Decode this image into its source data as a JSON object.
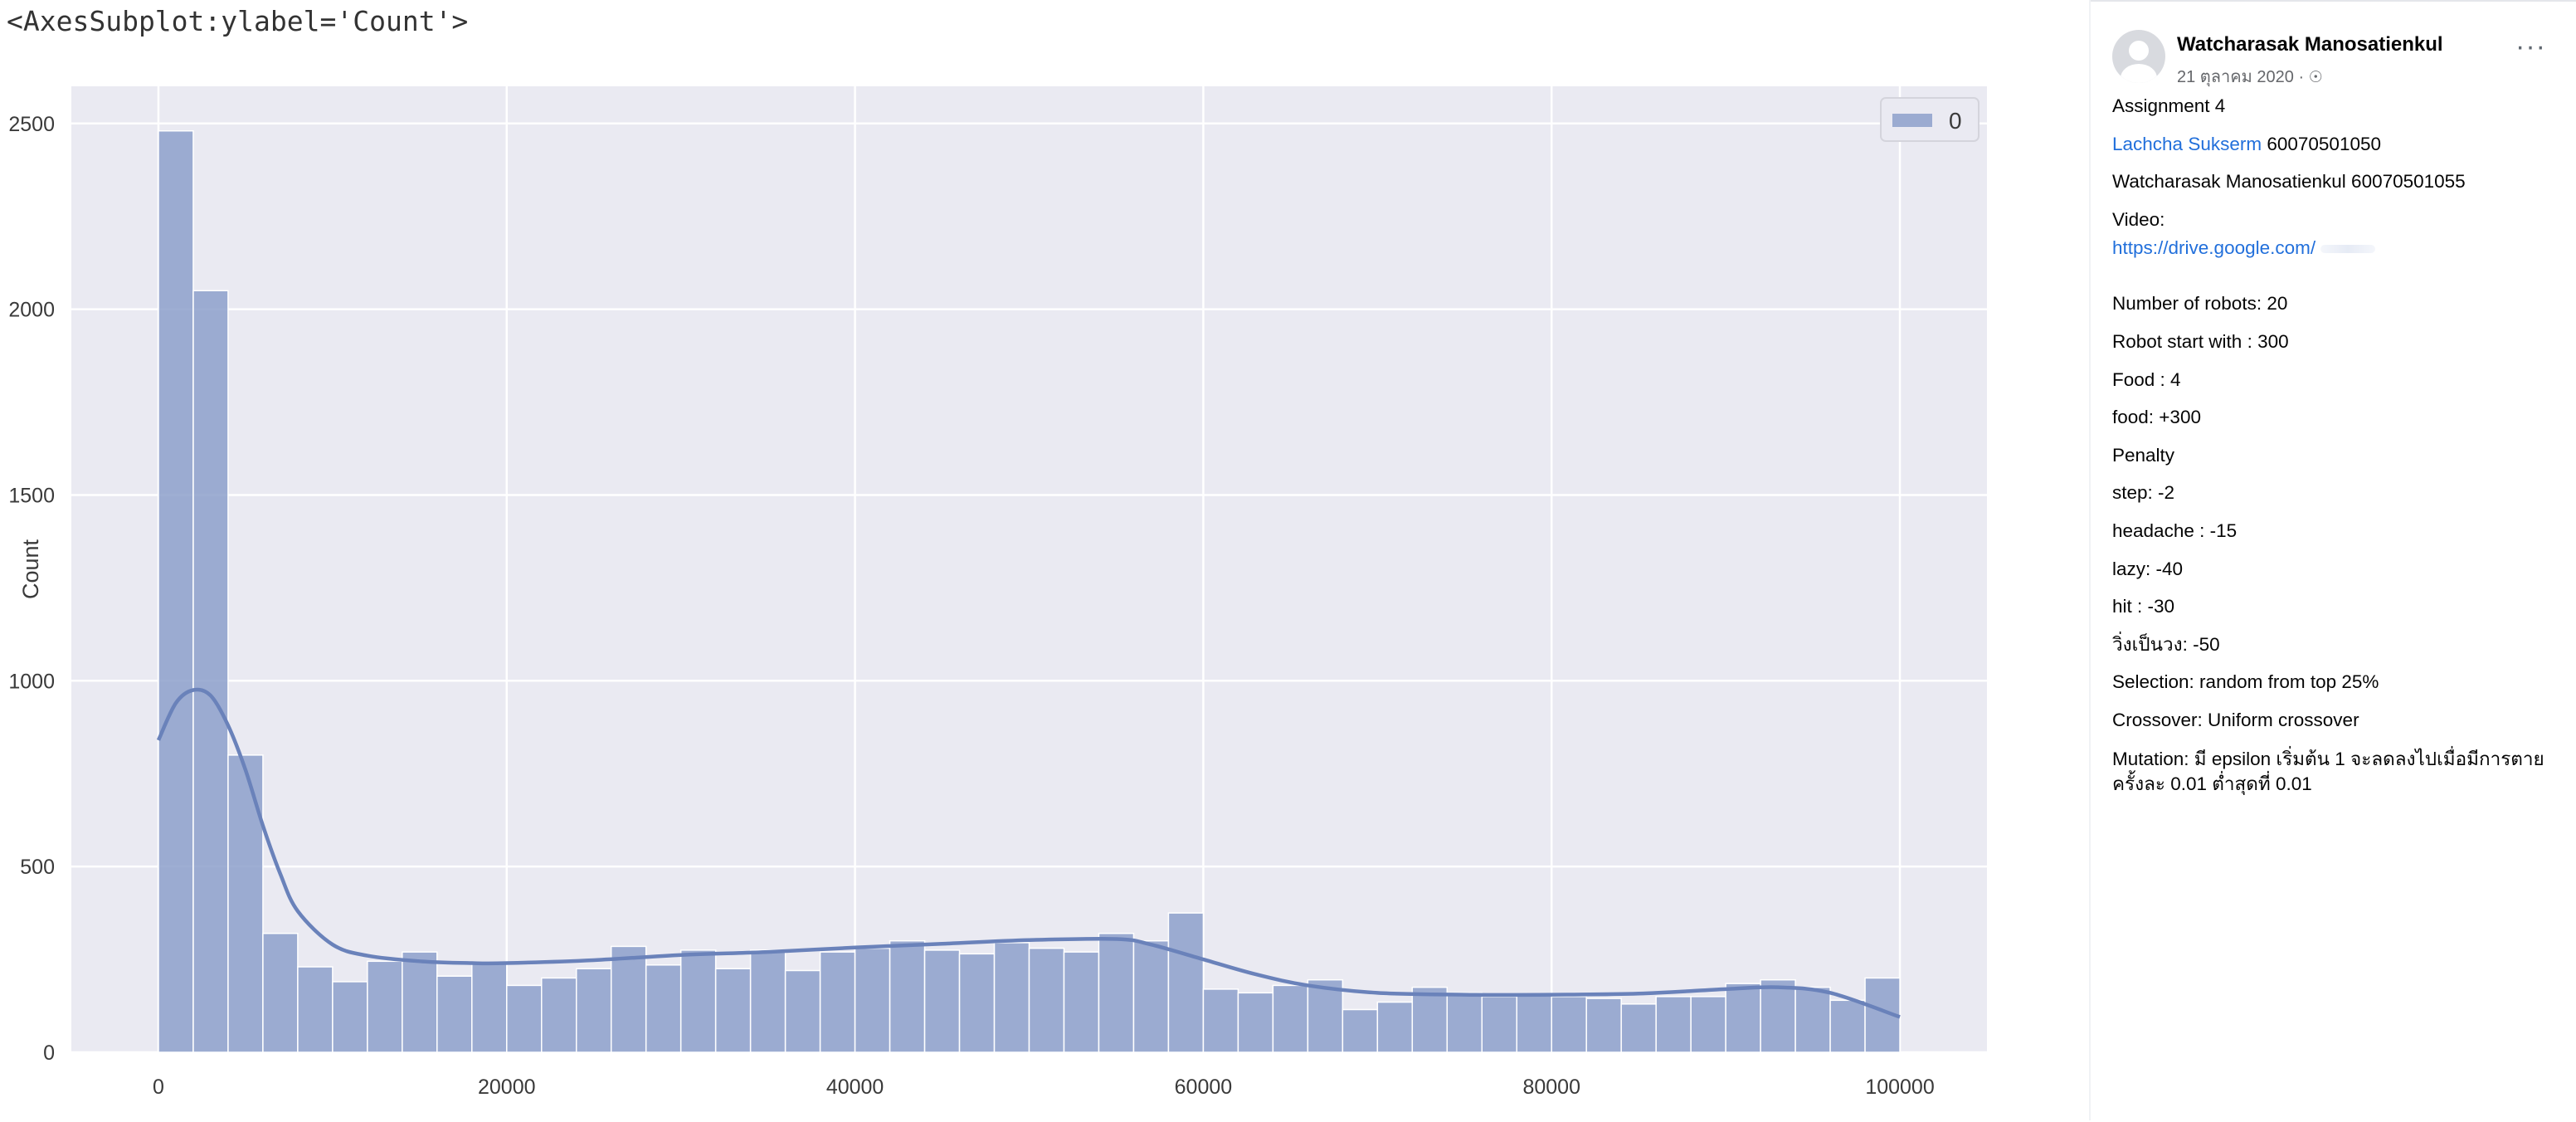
{
  "notebook": {
    "repr": "<AxesSubplot:ylabel='Count'>"
  },
  "chart_data": {
    "type": "bar",
    "subtype": "histogram-with-kde",
    "title": "",
    "xlabel": "",
    "ylabel": "Count",
    "xlim": [
      -5000,
      105000
    ],
    "ylim": [
      0,
      2600
    ],
    "xticks": [
      0,
      20000,
      40000,
      60000,
      80000,
      100000
    ],
    "yticks": [
      0,
      500,
      1000,
      1500,
      2000,
      2500
    ],
    "grid": true,
    "legend": {
      "position": "top-right",
      "entries": [
        "0"
      ]
    },
    "bin_start": 0,
    "bin_width": 2000,
    "series": [
      {
        "name": "0",
        "color": "#8da0cb",
        "counts": [
          2480,
          2050,
          800,
          320,
          230,
          190,
          245,
          270,
          205,
          240,
          180,
          200,
          225,
          285,
          235,
          275,
          225,
          275,
          220,
          270,
          280,
          300,
          275,
          265,
          295,
          280,
          270,
          320,
          300,
          375,
          170,
          160,
          180,
          195,
          115,
          135,
          175,
          160,
          150,
          155,
          150,
          145,
          130,
          150,
          150,
          185,
          195,
          175,
          140,
          200
        ]
      }
    ],
    "kde": {
      "color": "#6a82ba",
      "x": [
        0,
        1000,
        2000,
        3000,
        4000,
        5000,
        6000,
        7000,
        8000,
        10000,
        12000,
        15000,
        18000,
        20000,
        25000,
        30000,
        35000,
        40000,
        45000,
        50000,
        55000,
        57000,
        60000,
        63000,
        66000,
        70000,
        75000,
        80000,
        85000,
        90000,
        93000,
        96000,
        100000
      ],
      "y": [
        840,
        940,
        975,
        960,
        880,
        760,
        610,
        480,
        380,
        290,
        260,
        245,
        240,
        240,
        248,
        262,
        270,
        282,
        292,
        302,
        305,
        290,
        250,
        210,
        180,
        160,
        155,
        155,
        158,
        170,
        175,
        160,
        95
      ]
    }
  },
  "post": {
    "author": "Watcharasak Manosatienkul",
    "date": "21 ตุลาคม 2020",
    "separator": "·",
    "privacy_icon": "globe-icon",
    "more": "···",
    "lines": {
      "l1": "Assignment 4",
      "l2_link": "Lachcha Sukserm",
      "l2_rest": " 60070501050",
      "l3": "Watcharasak Manosatienkul 60070501055",
      "l4": "Video:",
      "l5_link": "https://drive.google.com/",
      "l6": "Number of robots: 20",
      "l7": "Robot start with : 300",
      "l8": "Food : 4",
      "l9": "food: +300",
      "l10": "Penalty",
      "l11": "step: -2",
      "l12": "headache : -15",
      "l13": "lazy: -40",
      "l14": "hit : -30",
      "l15": "วิ่งเป็นวง: -50",
      "l16": "Selection: random from top 25%",
      "l17": "Crossover: Uniform crossover",
      "l18": "Mutation: มี epsilon เริ่มต้น 1 จะลดลงไปเมื่อมีการตาย ครั้งละ 0.01 ต่ำสุดที่ 0.01"
    }
  }
}
